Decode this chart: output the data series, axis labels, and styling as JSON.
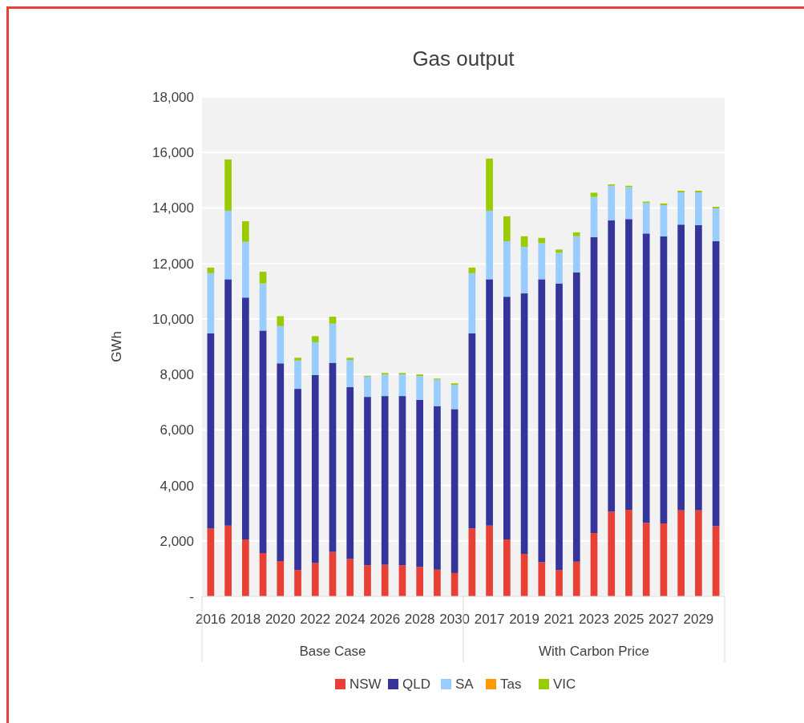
{
  "chart_data": {
    "type": "bar",
    "title": "Gas output",
    "ylabel": "GWh",
    "stacked": true,
    "grid": "y",
    "legend": "bottom",
    "categories": [
      "2016",
      null,
      "2018",
      null,
      "2020",
      null,
      "2022",
      null,
      "2024",
      null,
      "2026",
      null,
      "2028",
      null,
      "2030",
      null,
      "2017",
      null,
      "2019",
      null,
      "2021",
      null,
      "2023",
      null,
      "2025",
      null,
      "2027",
      null,
      "2029",
      null
    ],
    "annotations": [
      "Base Case",
      "With Carbon Price"
    ],
    "ylim": [
      0,
      18000
    ],
    "yticks": [
      {
        "value": 0,
        "label": "-"
      },
      {
        "value": 2000,
        "label": "2,000"
      },
      {
        "value": 4000,
        "label": "4,000"
      },
      {
        "value": 6000,
        "label": "6,000"
      },
      {
        "value": 8000,
        "label": "8,000"
      },
      {
        "value": 10000,
        "label": "10,000"
      },
      {
        "value": 12000,
        "label": "12,000"
      },
      {
        "value": 14000,
        "label": "14,000"
      },
      {
        "value": 16000,
        "label": "16,000"
      },
      {
        "value": 18000,
        "label": "18,000"
      }
    ],
    "series": [
      {
        "name": "NSW",
        "color": "#e84034",
        "values": [
          2450,
          2550,
          2050,
          1560,
          1270,
          950,
          1200,
          1600,
          1350,
          1120,
          1140,
          1120,
          1060,
          960,
          840,
          2450,
          2550,
          2050,
          1530,
          1230,
          950,
          1250,
          2280,
          3050,
          3120,
          2650,
          2630,
          3100,
          3100,
          2530
        ]
      },
      {
        "name": "QLD",
        "color": "#35349a",
        "values": [
          7030,
          8880,
          8720,
          8020,
          7130,
          6530,
          6780,
          6820,
          6190,
          6070,
          6080,
          6100,
          6020,
          5900,
          5910,
          7030,
          8880,
          8750,
          9390,
          10200,
          10330,
          10430,
          10670,
          10500,
          10480,
          10430,
          10350,
          10300,
          10280,
          10270
        ]
      },
      {
        "name": "SA",
        "color": "#99ccff",
        "values": [
          2170,
          2470,
          2010,
          1700,
          1340,
          1020,
          1180,
          1410,
          980,
          730,
          770,
          780,
          860,
          950,
          870,
          2170,
          2470,
          2000,
          1680,
          1300,
          1110,
          1300,
          1450,
          1250,
          1150,
          1100,
          1120,
          1160,
          1180,
          1180
        ]
      },
      {
        "name": "Tas",
        "color": "#ff9900",
        "values": [
          0,
          0,
          0,
          0,
          0,
          0,
          0,
          0,
          0,
          0,
          0,
          0,
          0,
          0,
          0,
          0,
          0,
          0,
          0,
          0,
          0,
          0,
          0,
          0,
          0,
          0,
          0,
          0,
          0,
          0
        ]
      },
      {
        "name": "VIC",
        "color": "#99cc00",
        "values": [
          200,
          1850,
          740,
          420,
          360,
          100,
          220,
          250,
          80,
          30,
          60,
          50,
          60,
          40,
          60,
          200,
          1880,
          900,
          380,
          190,
          110,
          140,
          150,
          50,
          50,
          50,
          60,
          60,
          60,
          60
        ]
      }
    ]
  }
}
